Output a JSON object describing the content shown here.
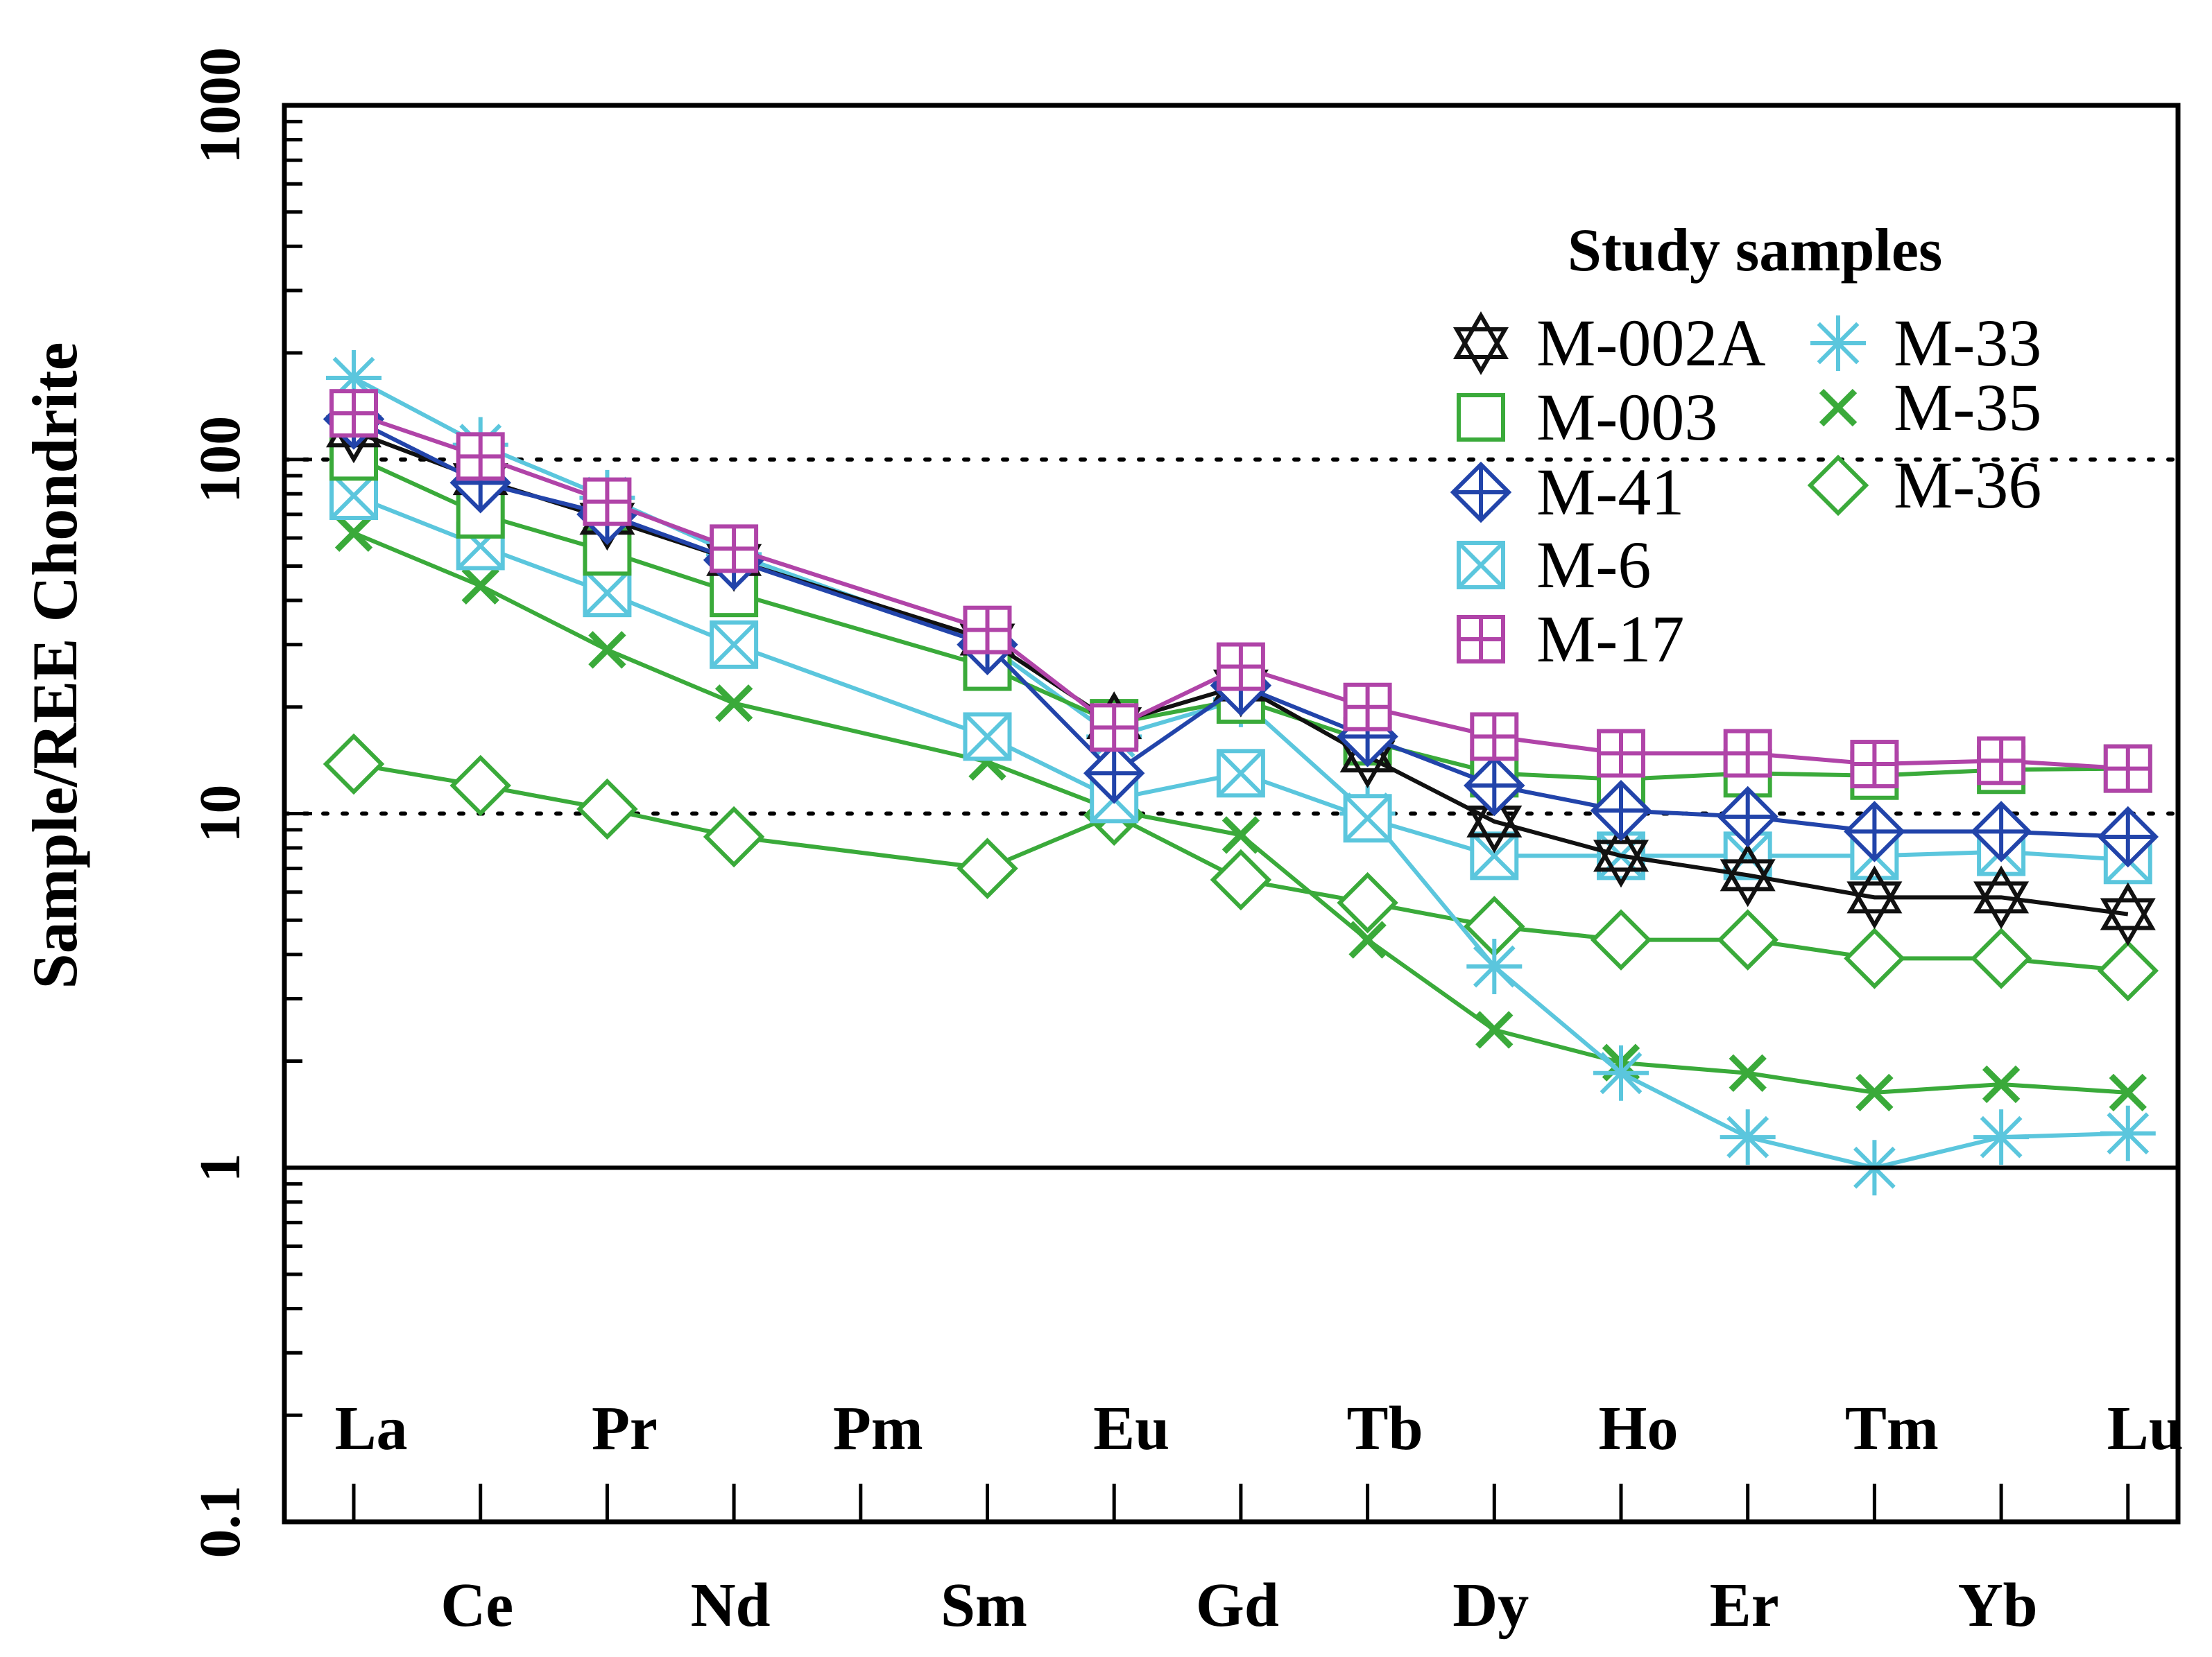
{
  "chart_data": {
    "type": "line",
    "title": "",
    "ylabel": "Sample/REE Chondrite",
    "xlabel": "",
    "yscale": "log",
    "ylim": [
      0.1,
      1000
    ],
    "ytick_labels": [
      "0.1",
      "1",
      "10",
      "100",
      "1000"
    ],
    "reference_lines": [
      10,
      100
    ],
    "categories": [
      "La",
      "Ce",
      "Pr",
      "Nd",
      "Pm",
      "Sm",
      "Eu",
      "Gd",
      "Tb",
      "Dy",
      "Ho",
      "Er",
      "Tm",
      "Yb",
      "Lu"
    ],
    "legend_title": "Study samples",
    "legend_position": "top-right",
    "series": [
      {
        "name": "M-002A",
        "color": "#111111",
        "marker": "star-of-david",
        "values": [
          120,
          88,
          68,
          52,
          null,
          31,
          18,
          23,
          14.5,
          9.5,
          7.6,
          6.7,
          5.8,
          5.8,
          5.2
        ]
      },
      {
        "name": "M-003",
        "color": "#3aaa3a",
        "marker": "square",
        "values": [
          102,
          70,
          55,
          42,
          null,
          26,
          18,
          21,
          16,
          13,
          12.5,
          13,
          12.8,
          13.3,
          13.4
        ]
      },
      {
        "name": "M-41",
        "color": "#2244aa",
        "marker": "diamond-cross",
        "values": [
          130,
          86,
          70,
          52,
          null,
          30,
          13,
          23,
          16.5,
          12,
          10.2,
          9.8,
          8.9,
          8.9,
          8.6
        ]
      },
      {
        "name": "M-6",
        "color": "#5bc6dd",
        "marker": "square-x",
        "values": [
          79,
          57,
          42,
          30,
          null,
          16.5,
          11,
          13,
          9.7,
          7.6,
          7.6,
          7.6,
          7.6,
          7.8,
          7.4
        ]
      },
      {
        "name": "M-17",
        "color": "#b044a8",
        "marker": "square-plus",
        "values": [
          135,
          102,
          76,
          56,
          null,
          33,
          17.5,
          26,
          20,
          16.5,
          14.8,
          14.8,
          13.8,
          14.1,
          13.4
        ]
      },
      {
        "name": "M-33",
        "color": "#5bc6dd",
        "marker": "asterisk",
        "values": [
          170,
          110,
          78,
          54,
          null,
          30,
          16.5,
          21,
          10,
          3.7,
          1.85,
          1.22,
          1.0,
          1.22,
          1.25
        ]
      },
      {
        "name": "M-35",
        "color": "#3aaa3a",
        "marker": "x",
        "values": [
          62,
          44,
          29,
          20.5,
          null,
          14,
          10.2,
          8.7,
          4.4,
          2.45,
          1.98,
          1.85,
          1.63,
          1.72,
          1.63
        ]
      },
      {
        "name": "M-36",
        "color": "#3aaa3a",
        "marker": "diamond",
        "values": [
          13.8,
          12,
          10.3,
          8.6,
          null,
          7.0,
          9.9,
          6.5,
          5.6,
          4.8,
          4.4,
          4.4,
          3.9,
          3.9,
          3.6
        ]
      }
    ]
  }
}
